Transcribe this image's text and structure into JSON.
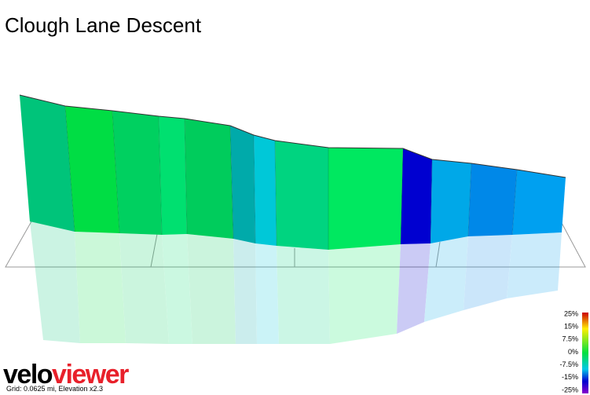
{
  "title": "Clough Lane Descent",
  "legend": {
    "labels": [
      "25%",
      "15%",
      "7.5%",
      "0%",
      "-7.5%",
      "-15%",
      "-25%"
    ]
  },
  "footer": {
    "logo": [
      "velo",
      "viewer"
    ],
    "caption": "Grid: 0.0625 mi, Elevation x2.3"
  }
}
